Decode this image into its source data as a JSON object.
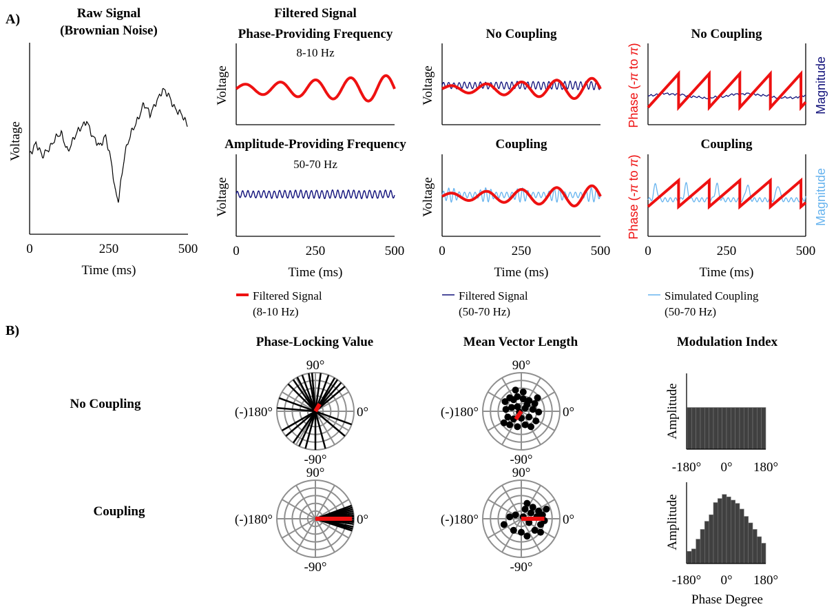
{
  "panel_labels": {
    "a": "A)",
    "b": "B)"
  },
  "colors": {
    "red": "#ee1111",
    "navy": "#10107a",
    "light_blue": "#66b3ee",
    "gray_grid": "#8f8f8f",
    "bar_fill": "#404040"
  },
  "panel_a": {
    "raw_title_1": "Raw Signal",
    "raw_title_2": "(Brownian Noise)",
    "filtered_title_1": "Filtered Signal",
    "filtered_title_2": "Phase-Providing Frequency",
    "amp_title": "Amplitude-Providing Frequency",
    "phase_band": "8-10 Hz",
    "amp_band": "50-70 Hz",
    "no_coupling": "No Coupling",
    "coupling": "Coupling",
    "voltage": "Voltage",
    "time_label": "Time (ms)",
    "ticks": [
      "0",
      "250",
      "500"
    ],
    "phase_label_1": "Phase (-",
    "phase_label_pi": "π",
    "phase_label_2": " to ",
    "phase_label_3": ")",
    "magnitude": "Magnitude"
  },
  "legend": [
    {
      "line1": "Filtered Signal",
      "line2": "(8-10 Hz)",
      "color": "#ee1111"
    },
    {
      "line1": "Filtered Signal",
      "line2": "(50-70 Hz)",
      "color": "#10107a"
    },
    {
      "line1": "Simulated Coupling",
      "line2": "(50-70 Hz)",
      "color": "#66b3ee"
    }
  ],
  "panel_b": {
    "row_no_coupling": "No Coupling",
    "row_coupling": "Coupling",
    "plv_title": "Phase-Locking Value",
    "mvl_title": "Mean Vector Length",
    "mi_title": "Modulation Index",
    "deg_90": "90°",
    "deg_0": "0°",
    "deg_m90": "-90°",
    "deg_180": "(-)180°",
    "amplitude": "Amplitude",
    "phase_degree": "Phase Degree",
    "mi_ticks": [
      "-180°",
      "0°",
      "180°"
    ]
  },
  "chart_data": [
    {
      "id": "raw_signal",
      "type": "line",
      "title": "Raw Signal (Brownian Noise)",
      "xlabel": "Time (ms)",
      "ylabel": "Voltage",
      "xlim": [
        0,
        500
      ],
      "x": [
        0,
        20,
        40,
        60,
        80,
        100,
        120,
        140,
        160,
        180,
        200,
        220,
        240,
        260,
        270,
        280,
        290,
        300,
        320,
        340,
        360,
        380,
        400,
        420,
        440,
        460,
        480,
        500
      ],
      "y": [
        0.42,
        0.48,
        0.4,
        0.45,
        0.5,
        0.52,
        0.44,
        0.5,
        0.55,
        0.6,
        0.5,
        0.46,
        0.52,
        0.35,
        0.22,
        0.18,
        0.3,
        0.42,
        0.52,
        0.6,
        0.68,
        0.62,
        0.7,
        0.75,
        0.72,
        0.66,
        0.62,
        0.56
      ],
      "color": "#000000"
    },
    {
      "id": "phase_signal",
      "type": "line",
      "title": "Filtered Signal Phase-Providing Frequency",
      "annotation": "8-10 Hz",
      "xlabel": "Time (ms)",
      "ylabel": "Voltage",
      "xlim": [
        0,
        500
      ],
      "frequency_hz": 9,
      "amplitude_start": 0.1,
      "amplitude_end": 0.45,
      "color": "#ee1111"
    },
    {
      "id": "amp_signal",
      "type": "line",
      "title": "Amplitude-Providing Frequency",
      "annotation": "50-70 Hz",
      "xlabel": "Time (ms)",
      "ylabel": "Voltage",
      "xlim": [
        0,
        500
      ],
      "frequency_hz": 60,
      "amplitude": 0.1,
      "color": "#10107a"
    },
    {
      "id": "no_coupling_overlay",
      "type": "line",
      "title": "No Coupling",
      "ylabel": "Voltage",
      "series": [
        {
          "name": "Filtered Signal (8-10 Hz)",
          "frequency_hz": 9
        },
        {
          "name": "Filtered Signal (50-70 Hz)",
          "frequency_hz": 60
        }
      ]
    },
    {
      "id": "coupling_overlay",
      "type": "line",
      "title": "Coupling",
      "ylabel": "Voltage",
      "xlabel": "Time (ms)",
      "xlim": [
        0,
        500
      ],
      "series": [
        {
          "name": "Filtered Signal (8-10 Hz)",
          "frequency_hz": 9
        },
        {
          "name": "Simulated Coupling (50-70 Hz)",
          "frequency_hz": 60
        }
      ]
    },
    {
      "id": "phase_magnitude_no_coupling",
      "type": "line",
      "title": "No Coupling",
      "ylabel": "Phase (-π to π)",
      "y2label": "Magnitude",
      "phase_reset_times_ms": [
        0,
        97,
        194,
        291,
        388,
        485
      ]
    },
    {
      "id": "phase_magnitude_coupling",
      "type": "line",
      "title": "Coupling",
      "xlabel": "Time (ms)",
      "xlim": [
        0,
        500
      ],
      "ylabel": "Phase (-π to π)",
      "y2label": "Magnitude",
      "phase_reset_times_ms": [
        0,
        97,
        194,
        291,
        388,
        485
      ]
    },
    {
      "id": "plv_no_coupling",
      "type": "polar",
      "title": "Phase-Locking Value",
      "vector_angles_deg": [
        82,
        70,
        60,
        55,
        48,
        40,
        95,
        100,
        110,
        118,
        125,
        135,
        -20,
        -40,
        -75,
        -90,
        -105,
        -115,
        -125,
        -140,
        -150,
        160,
        175
      ],
      "mean_vector": {
        "angle_deg": 60,
        "length": 0.22
      }
    },
    {
      "id": "plv_coupling",
      "type": "polar",
      "vector_angles_deg": [
        -15,
        -12,
        -8,
        -5,
        -3,
        0,
        3,
        5,
        8,
        11,
        14,
        17,
        20,
        -18
      ],
      "mean_vector": {
        "angle_deg": 0,
        "length": 0.95
      }
    },
    {
      "id": "mvl_no_coupling",
      "type": "polar",
      "title": "Mean Vector Length",
      "points": [
        [
          -0.42,
          0.25
        ],
        [
          -0.3,
          0.35
        ],
        [
          -0.2,
          0.3
        ],
        [
          -0.1,
          0.38
        ],
        [
          0.05,
          0.32
        ],
        [
          0.2,
          0.28
        ],
        [
          0.35,
          0.2
        ],
        [
          -0.4,
          0.05
        ],
        [
          -0.25,
          0.1
        ],
        [
          -0.1,
          0.12
        ],
        [
          0.1,
          0.08
        ],
        [
          0.3,
          0.05
        ],
        [
          0.45,
          -0.02
        ],
        [
          -0.35,
          -0.15
        ],
        [
          -0.2,
          -0.2
        ],
        [
          0,
          -0.18
        ],
        [
          0.2,
          -0.15
        ],
        [
          0.38,
          -0.25
        ],
        [
          -0.3,
          -0.35
        ],
        [
          -0.1,
          -0.4
        ],
        [
          0.1,
          -0.35
        ],
        [
          0.25,
          -0.4
        ],
        [
          0.05,
          0.5
        ],
        [
          -0.15,
          0.55
        ],
        [
          -0.45,
          -0.3
        ],
        [
          0.42,
          0.35
        ],
        [
          -0.05,
          -0.02
        ],
        [
          0.15,
          0.18
        ]
      ],
      "mean_vector": {
        "angle_deg": 235,
        "length": 0.25
      }
    },
    {
      "id": "mvl_coupling",
      "type": "polar",
      "points": [
        [
          0.1,
          0.25
        ],
        [
          0.3,
          0.3
        ],
        [
          0.45,
          0.2
        ],
        [
          0.55,
          0.1
        ],
        [
          0.6,
          -0.05
        ],
        [
          0.5,
          -0.15
        ],
        [
          0.35,
          -0.3
        ],
        [
          0.2,
          -0.1
        ],
        [
          0.4,
          0.05
        ],
        [
          0.25,
          0.15
        ],
        [
          0.05,
          0.05
        ],
        [
          -0.15,
          0.1
        ],
        [
          -0.3,
          0.05
        ],
        [
          -0.45,
          -0.15
        ],
        [
          -0.2,
          -0.3
        ],
        [
          0,
          -0.35
        ],
        [
          0.15,
          -0.45
        ],
        [
          0.5,
          -0.35
        ],
        [
          0.65,
          0.25
        ],
        [
          0.15,
          0.4
        ]
      ],
      "mean_vector": {
        "angle_deg": 0,
        "length": 0.6
      }
    },
    {
      "id": "mi_no_coupling",
      "type": "bar",
      "title": "Modulation Index",
      "ylabel": "Amplitude",
      "xlim": [
        -180,
        180
      ],
      "values": [
        0.55,
        0.55,
        0.55,
        0.55,
        0.55,
        0.55,
        0.55,
        0.55,
        0.55,
        0.55,
        0.55,
        0.55,
        0.55,
        0.55,
        0.55,
        0.55,
        0.55,
        0.55
      ]
    },
    {
      "id": "mi_coupling",
      "type": "bar",
      "ylabel": "Amplitude",
      "xlabel": "Phase Degree",
      "xlim": [
        -180,
        180
      ],
      "values": [
        0.15,
        0.18,
        0.3,
        0.42,
        0.52,
        0.6,
        0.75,
        0.8,
        0.85,
        0.82,
        0.78,
        0.74,
        0.67,
        0.58,
        0.5,
        0.42,
        0.33,
        0.25
      ]
    }
  ]
}
